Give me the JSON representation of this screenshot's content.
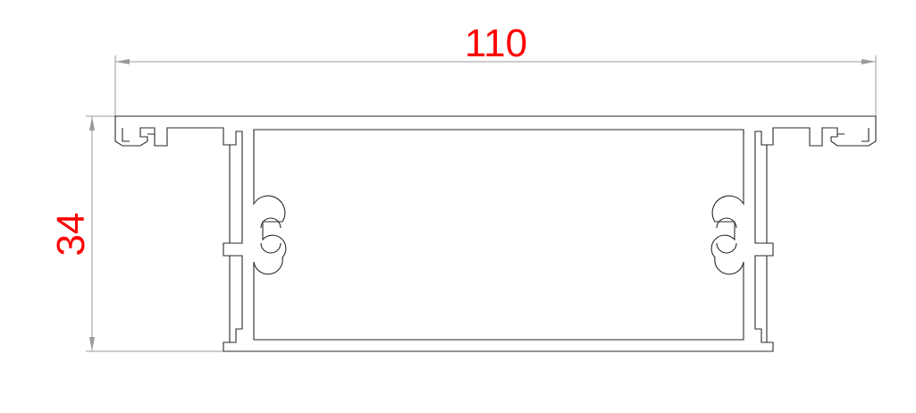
{
  "dimensions": {
    "width_label": "110",
    "height_label": "34",
    "label_color": "#ff0000",
    "line_color": "#9a9a9a"
  },
  "profile": {
    "stroke_color": "#2a2a2a",
    "background": "#ffffff"
  }
}
